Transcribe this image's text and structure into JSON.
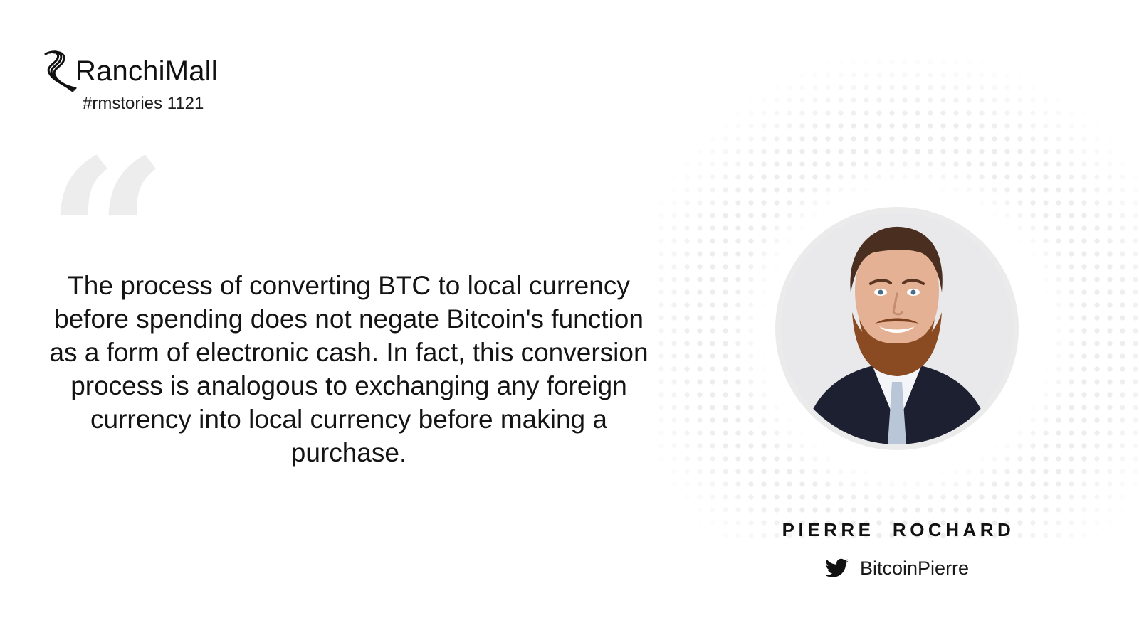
{
  "brand": {
    "name": "RanchiMall",
    "tagline": "#rmstories 1121"
  },
  "quote": {
    "text": "The process of converting BTC to local currency before spending does not negate Bitcoin's function as a form of electronic cash. In fact, this conversion process is analogous to exchanging any foreign currency into local currency before making a purchase."
  },
  "person": {
    "name": "PIERRE  ROCHARD",
    "twitter_handle": "BitcoinPierre",
    "icon": "twitter-icon"
  },
  "colors": {
    "text": "#141414",
    "quote_mark": "#ededed",
    "background": "#ffffff"
  }
}
